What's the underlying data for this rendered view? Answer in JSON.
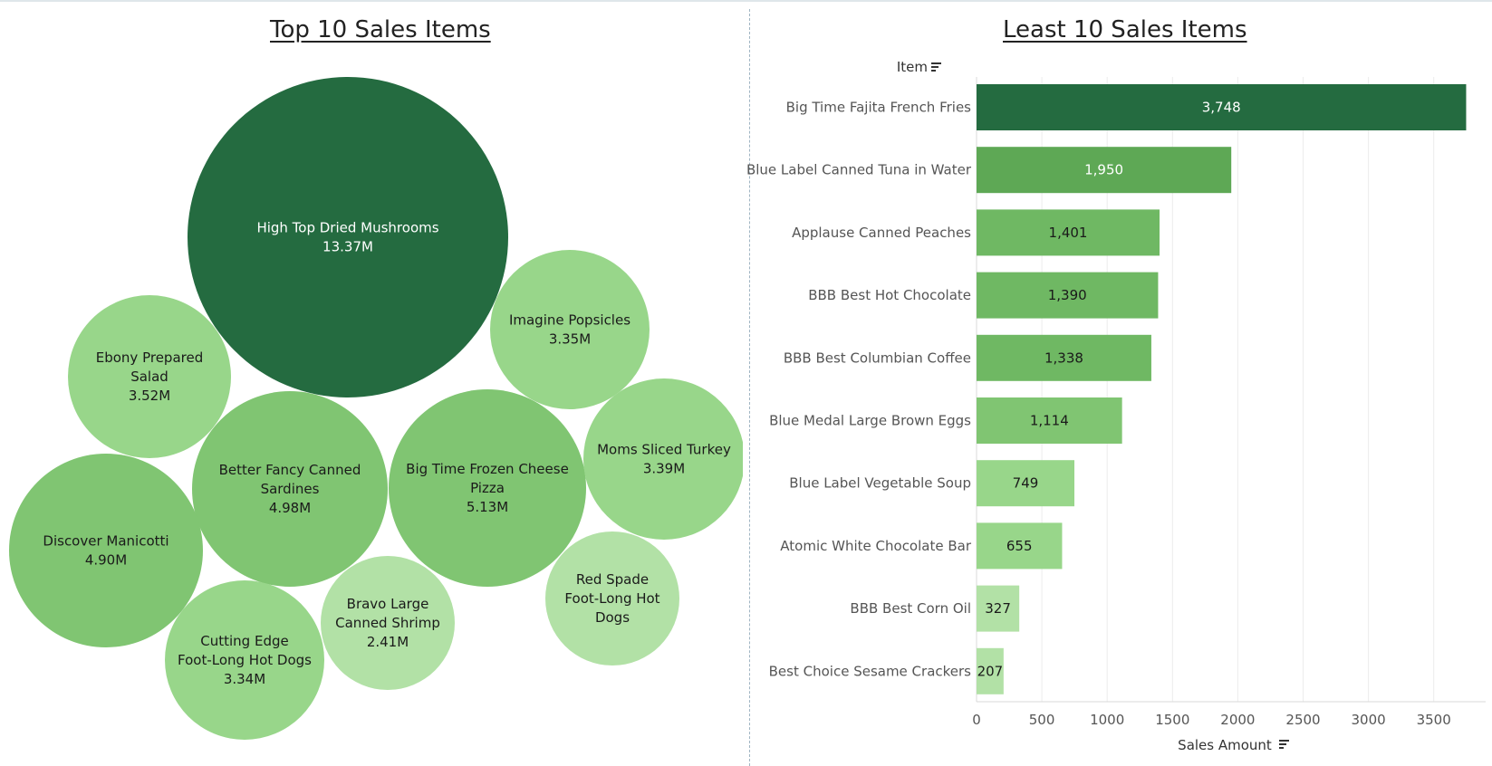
{
  "colors": {
    "darkest": "#246b40",
    "dark": "#5ea855",
    "mid": "#6fb863",
    "medium": "#80c572",
    "light": "#98d68a",
    "lightest": "#b2e1a6",
    "divider": "#9fb4c2"
  },
  "chart_data": [
    {
      "type": "bubble",
      "title": "Top 10 Sales Items",
      "items": [
        {
          "name": "High Top Dried Mushrooms",
          "value": 13.37,
          "label_lines": [
            "High Top Dried Mushrooms",
            "13.37M"
          ]
        },
        {
          "name": "Big Time Frozen Cheese Pizza",
          "value": 5.13,
          "label_lines": [
            "Big Time Frozen Cheese",
            "Pizza",
            "5.13M"
          ]
        },
        {
          "name": "Better Fancy Canned Sardines",
          "value": 4.98,
          "label_lines": [
            "Better Fancy Canned",
            "Sardines",
            "4.98M"
          ]
        },
        {
          "name": "Discover Manicotti",
          "value": 4.9,
          "label_lines": [
            "Discover Manicotti",
            "4.90M"
          ]
        },
        {
          "name": "Ebony Prepared Salad",
          "value": 3.52,
          "label_lines": [
            "Ebony Prepared",
            "Salad",
            "3.52M"
          ]
        },
        {
          "name": "Moms Sliced Turkey",
          "value": 3.39,
          "label_lines": [
            "Moms Sliced Turkey",
            "3.39M"
          ]
        },
        {
          "name": "Imagine Popsicles",
          "value": 3.35,
          "label_lines": [
            "Imagine Popsicles",
            "3.35M"
          ]
        },
        {
          "name": "Cutting Edge Foot-Long Hot Dogs",
          "value": 3.34,
          "label_lines": [
            "Cutting Edge",
            "Foot-Long Hot Dogs",
            "3.34M"
          ]
        },
        {
          "name": "Bravo Large Canned Shrimp",
          "value": 2.41,
          "label_lines": [
            "Bravo Large",
            "Canned Shrimp",
            "2.41M"
          ]
        },
        {
          "name": "Red Spade Foot-Long Hot Dogs",
          "value": null,
          "label_lines": [
            "Red Spade",
            "Foot-Long Hot",
            "Dogs"
          ]
        }
      ]
    },
    {
      "type": "bar",
      "orientation": "horizontal",
      "title": "Least 10 Sales Items",
      "ylabel": "Item",
      "xlabel": "Sales Amount",
      "xlim": [
        0,
        3900
      ],
      "xticks": [
        0,
        500,
        1000,
        1500,
        2000,
        2500,
        3000,
        3500
      ],
      "grid": true,
      "categories": [
        "Big Time Fajita French Fries",
        "Blue Label Canned Tuna in Water",
        "Applause Canned Peaches",
        "BBB Best Hot Chocolate",
        "BBB Best Columbian Coffee",
        "Blue Medal Large Brown Eggs",
        "Blue Label Vegetable Soup",
        "Atomic White Chocolate Bar",
        "BBB Best Corn Oil",
        "Best Choice Sesame Crackers"
      ],
      "values": [
        3748,
        1950,
        1401,
        1390,
        1338,
        1114,
        749,
        655,
        327,
        207
      ],
      "data_labels": [
        "3,748",
        "1,950",
        "1,401",
        "1,390",
        "1,338",
        "1,114",
        "749",
        "655",
        "327",
        "207"
      ]
    }
  ]
}
